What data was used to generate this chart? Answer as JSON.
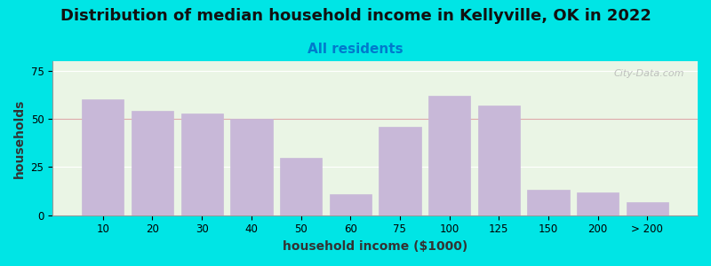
{
  "title": "Distribution of median household income in Kellyville, OK in 2022",
  "subtitle": "All residents",
  "xlabel": "household income ($1000)",
  "ylabel": "households",
  "bar_labels": [
    "10",
    "20",
    "30",
    "40",
    "50",
    "60",
    "75",
    "100",
    "125",
    "150",
    "200",
    "> 200"
  ],
  "bar_values": [
    60,
    54,
    53,
    50,
    30,
    11,
    46,
    62,
    57,
    13,
    12,
    7
  ],
  "bar_color": "#c8b8d8",
  "background_top": "#e8f5e0",
  "background_bottom": "#f5f5f5",
  "outer_bg": "#00e5e5",
  "ylim": [
    0,
    80
  ],
  "yticks": [
    0,
    25,
    50,
    75
  ],
  "title_fontsize": 13,
  "subtitle_fontsize": 11,
  "axis_label_fontsize": 10,
  "watermark": "City-Data.com"
}
